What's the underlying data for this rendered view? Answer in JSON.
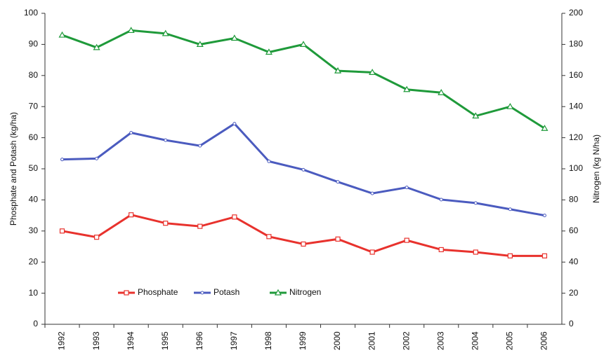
{
  "chart_data": {
    "type": "line",
    "categories": [
      "1992",
      "1993",
      "1994",
      "1995",
      "1996",
      "1997",
      "1998",
      "1999",
      "2000",
      "2001",
      "2002",
      "2003",
      "2004",
      "2005",
      "2006"
    ],
    "series": [
      {
        "name": "Phosphate",
        "color": "#e8322d",
        "marker": "square",
        "values": [
          30,
          28,
          35.2,
          32.5,
          31.5,
          34.5,
          28.2,
          25.8,
          27.4,
          23.2,
          27,
          24,
          23.2,
          22,
          22
        ]
      },
      {
        "name": "Potash",
        "color": "#4b5bbf",
        "marker": "dot",
        "values": [
          53,
          53.3,
          61.6,
          59.2,
          57.4,
          64.5,
          52.4,
          49.7,
          45.8,
          42.1,
          44,
          40.1,
          39,
          37,
          35
        ]
      },
      {
        "name": "Nitrogen",
        "color": "#1f9a3a",
        "marker": "triangle",
        "axis": "y2",
        "values": [
          186,
          178,
          189,
          187,
          180,
          184,
          175,
          180,
          163,
          162,
          151,
          149,
          134,
          140,
          126
        ]
      }
    ],
    "ylabel": "Phosphate and Potash (kg/ha)",
    "y2label": "Nitrogen (kg N/ha)",
    "ylim": [
      0,
      100
    ],
    "yticks": [
      0,
      10,
      20,
      30,
      40,
      50,
      60,
      70,
      80,
      90,
      100
    ],
    "y2lim": [
      0,
      200
    ],
    "y2ticks": [
      0,
      20,
      40,
      60,
      80,
      100,
      120,
      140,
      160,
      180,
      200
    ],
    "grid": false,
    "legend": "lower left"
  }
}
